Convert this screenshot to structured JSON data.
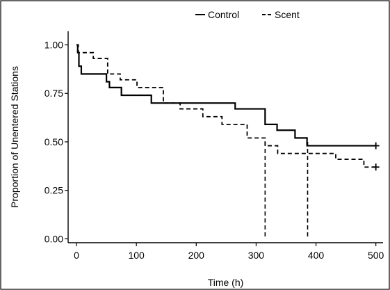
{
  "chart_data": {
    "type": "line",
    "subtype": "step",
    "xlabel": "Time (h)",
    "ylabel": "Proportion of Unentered Stations",
    "xlim": [
      -14,
      512
    ],
    "ylim": [
      -0.02,
      1.07
    ],
    "x_ticks": [
      0,
      100,
      200,
      300,
      400,
      500
    ],
    "x_tick_labels": [
      "0",
      "100",
      "200",
      "300",
      "400",
      "500"
    ],
    "y_ticks": [
      0,
      0.25,
      0.5,
      0.75,
      1
    ],
    "y_tick_labels": [
      "0.00",
      "0.25",
      "0.50",
      "0.75",
      "1.00"
    ],
    "grid": false,
    "legend_position": "top",
    "series": [
      {
        "name": "Control",
        "line_style": "solid",
        "color": "#000000",
        "points": [
          [
            0,
            1.0
          ],
          [
            2,
            0.96
          ],
          [
            4,
            0.89
          ],
          [
            8,
            0.85
          ],
          [
            50,
            0.81
          ],
          [
            55,
            0.78
          ],
          [
            75,
            0.74
          ],
          [
            125,
            0.7
          ],
          [
            265,
            0.67
          ],
          [
            315,
            0.59
          ],
          [
            335,
            0.56
          ],
          [
            365,
            0.52
          ],
          [
            385,
            0.48
          ],
          [
            500,
            0.48
          ]
        ],
        "censored": [
          [
            500,
            0.48
          ]
        ]
      },
      {
        "name": "Scent",
        "line_style": "dashed",
        "color": "#000000",
        "points": [
          [
            0,
            1.0
          ],
          [
            3,
            0.96
          ],
          [
            28,
            0.93
          ],
          [
            52,
            0.85
          ],
          [
            73,
            0.82
          ],
          [
            101,
            0.78
          ],
          [
            145,
            0.7
          ],
          [
            173,
            0.67
          ],
          [
            211,
            0.63
          ],
          [
            243,
            0.59
          ],
          [
            285,
            0.52
          ],
          [
            315,
            0.48
          ],
          [
            336,
            0.44
          ],
          [
            433,
            0.41
          ],
          [
            480,
            0.37
          ],
          [
            500,
            0.37
          ]
        ],
        "censored": [
          [
            500,
            0.37
          ]
        ]
      }
    ],
    "reference_lines": [
      {
        "style": "dashed",
        "points": [
          [
            315,
            0.5
          ],
          [
            315,
            0
          ]
        ]
      },
      {
        "style": "dashed",
        "points": [
          [
            386,
            0.5
          ],
          [
            386,
            0
          ]
        ]
      }
    ]
  }
}
